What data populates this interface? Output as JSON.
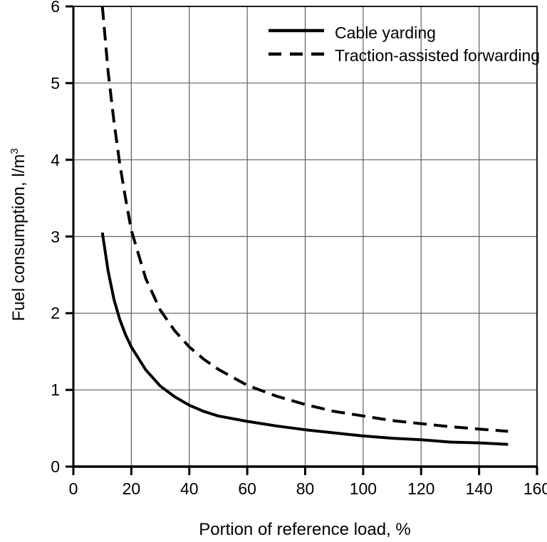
{
  "figure": {
    "background": "#ffffff"
  },
  "chart_data": {
    "type": "line",
    "title": "",
    "xlabel": "Portion of reference load, %",
    "ylabel": "Fuel consumption, l/m³",
    "ylabel_base": "Fuel consumption, l/m",
    "ylabel_sup": "3",
    "xlim": [
      0,
      160
    ],
    "ylim": [
      0,
      6
    ],
    "x_ticks": [
      0,
      20,
      40,
      60,
      80,
      100,
      120,
      140,
      160
    ],
    "y_ticks": [
      0,
      1,
      2,
      3,
      4,
      5,
      6
    ],
    "grid": true,
    "legend_position": "top-center-inside",
    "colors": {
      "line": "#000000",
      "grid": "#5f5f5f",
      "text": "#000000",
      "background": "#ffffff"
    },
    "series": [
      {
        "name": "Cable yarding",
        "style": "solid",
        "color": "#000000",
        "x": [
          10,
          12,
          14,
          16,
          18,
          20,
          25,
          30,
          35,
          40,
          45,
          50,
          60,
          70,
          80,
          90,
          100,
          110,
          120,
          130,
          140,
          150
        ],
        "y": [
          3.05,
          2.55,
          2.18,
          1.92,
          1.72,
          1.56,
          1.26,
          1.05,
          0.91,
          0.8,
          0.72,
          0.66,
          0.59,
          0.53,
          0.48,
          0.44,
          0.4,
          0.37,
          0.35,
          0.32,
          0.31,
          0.29
        ]
      },
      {
        "name": "Traction-assisted forwarding",
        "style": "dashed",
        "color": "#000000",
        "x": [
          10,
          12,
          14,
          16,
          18,
          20,
          25,
          30,
          35,
          40,
          45,
          50,
          60,
          70,
          80,
          90,
          100,
          110,
          120,
          130,
          140,
          150
        ],
        "y": [
          6.0,
          5.15,
          4.5,
          3.95,
          3.5,
          3.08,
          2.45,
          2.04,
          1.77,
          1.56,
          1.4,
          1.27,
          1.06,
          0.92,
          0.81,
          0.72,
          0.66,
          0.6,
          0.56,
          0.52,
          0.49,
          0.46
        ]
      }
    ]
  }
}
